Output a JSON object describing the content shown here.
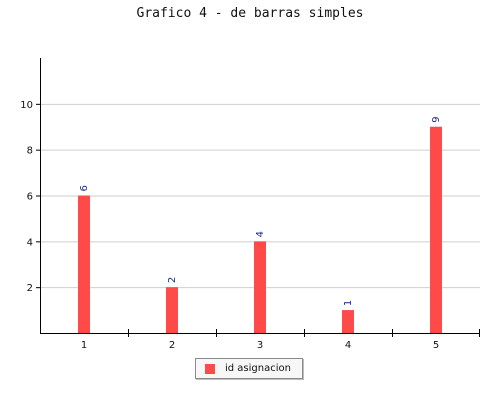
{
  "chart_data": {
    "type": "bar",
    "title": "Grafico 4 - de barras simples",
    "xlabel": "",
    "ylabel": "",
    "categories": [
      "1",
      "2",
      "3",
      "4",
      "5"
    ],
    "series": [
      {
        "name": "id asignacion",
        "values": [
          6,
          2,
          4,
          1,
          9
        ],
        "color": "#ff4a4a"
      }
    ],
    "ylim": [
      0,
      12
    ],
    "yticks": [
      2,
      4,
      6,
      8,
      10
    ],
    "grid": true,
    "data_label_color": "#1c2a8c",
    "legend_position": "bottom-center"
  }
}
